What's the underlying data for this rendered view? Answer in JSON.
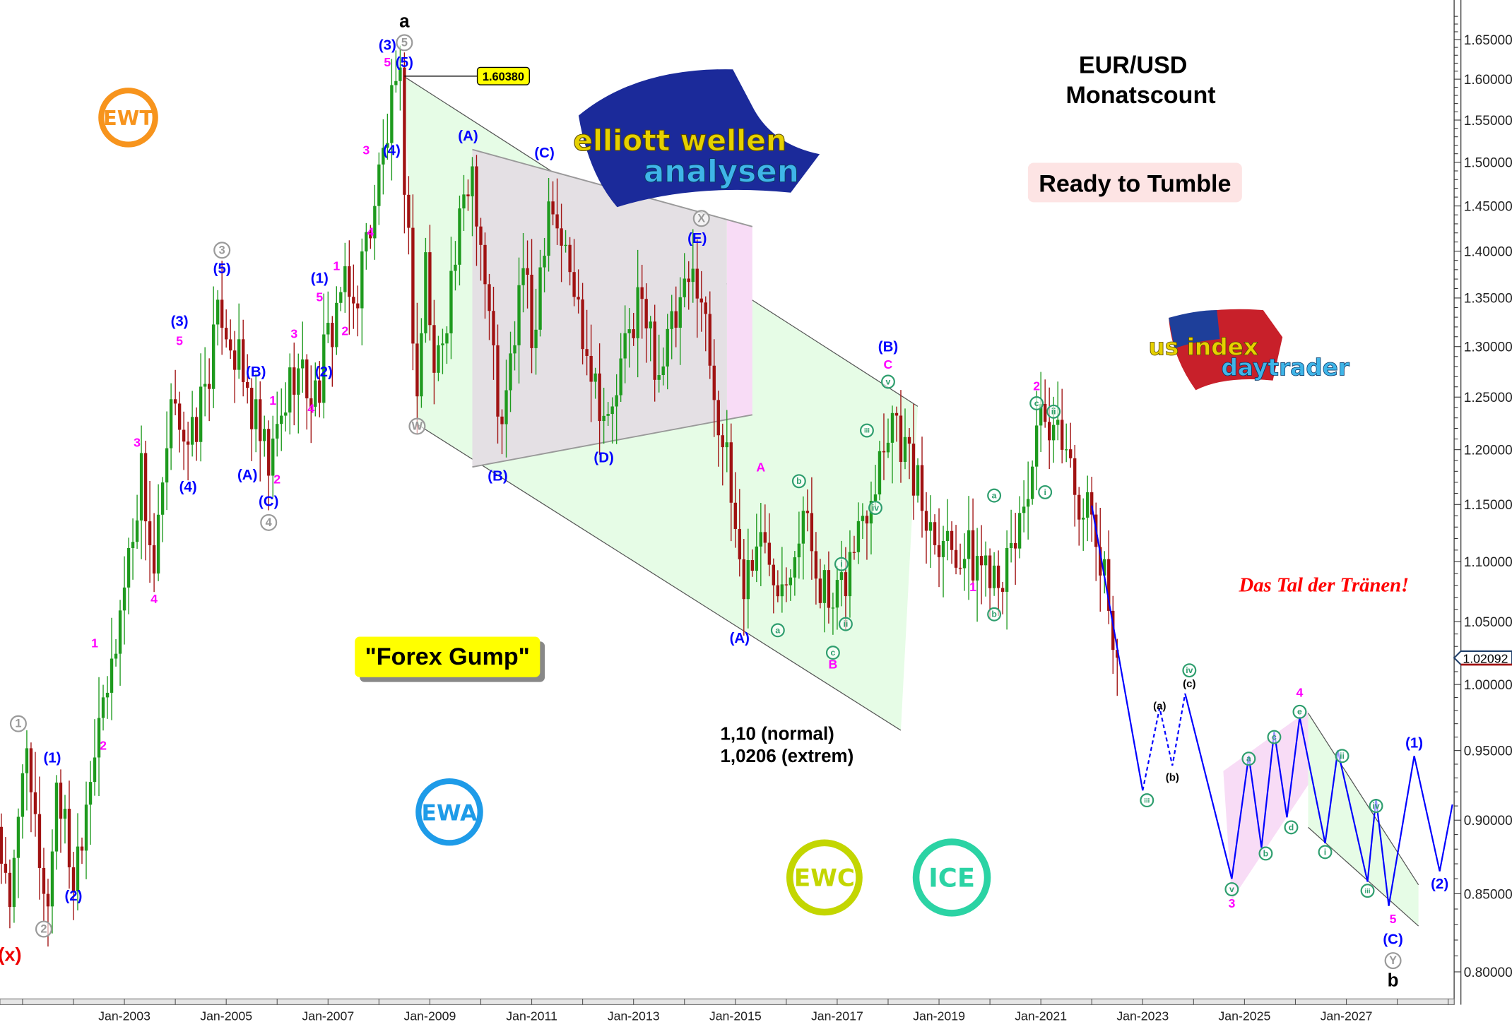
{
  "chart_data": {
    "type": "candlestick",
    "title": "EUR/USD",
    "subtitle": "Monatscount",
    "y_axis": {
      "scale": "log",
      "range": [
        0.79,
        1.68
      ],
      "ticks": [
        "1.65000",
        "1.60000",
        "1.55000",
        "1.50000",
        "1.45000",
        "1.40000",
        "1.35000",
        "1.30000",
        "1.25000",
        "1.20000",
        "1.15000",
        "1.10000",
        "1.05000",
        "1.00000",
        "0.95000",
        "0.90000",
        "0.85000",
        "0.80000"
      ],
      "position": "right"
    },
    "x_axis": {
      "range": [
        "2000-07",
        "2029-04"
      ],
      "ticks": [
        "Jan-2003",
        "Jan-2005",
        "Jan-2007",
        "Jan-2009",
        "Jan-2011",
        "Jan-2013",
        "Jan-2015",
        "Jan-2017",
        "Jan-2019",
        "Jan-2021",
        "Jan-2023",
        "Jan-2025",
        "Jan-2027"
      ]
    },
    "grid": false,
    "candle_colors": {
      "up": "#1e9a1e",
      "down": "#a01212"
    },
    "last_price": "1.02092",
    "peak_price_label": "1.60380",
    "peak_point": [
      "2008-07",
      1.6038
    ],
    "price_pivots": [
      [
        "2000-07",
        0.9
      ],
      [
        "2000-10",
        0.83
      ],
      [
        "2001-01",
        0.95
      ],
      [
        "2001-07",
        0.84
      ],
      [
        "2001-09",
        0.93
      ],
      [
        "2002-01",
        0.86
      ],
      [
        "2002-07",
        0.98
      ],
      [
        "2002-08",
        0.97
      ],
      [
        "2003-05",
        1.18
      ],
      [
        "2003-08",
        1.09
      ],
      [
        "2004-01",
        1.26
      ],
      [
        "2004-04",
        1.19
      ],
      [
        "2004-12",
        1.34
      ],
      [
        "2005-11",
        1.18
      ],
      [
        "2006-05",
        1.28
      ],
      [
        "2006-10",
        1.25
      ],
      [
        "2007-04",
        1.36
      ],
      [
        "2007-07",
        1.34
      ],
      [
        "2008-04",
        1.56
      ],
      [
        "2008-06",
        1.58
      ],
      [
        "2008-10",
        1.25
      ],
      [
        "2008-12",
        1.39
      ],
      [
        "2009-02",
        1.27
      ],
      [
        "2009-11",
        1.5
      ],
      [
        "2010-06",
        1.21
      ],
      [
        "2010-11",
        1.39
      ],
      [
        "2011-01",
        1.3
      ],
      [
        "2011-05",
        1.47
      ],
      [
        "2012-07",
        1.22
      ],
      [
        "2013-02",
        1.35
      ],
      [
        "2013-07",
        1.28
      ],
      [
        "2014-04",
        1.38
      ],
      [
        "2015-03",
        1.08
      ],
      [
        "2015-06",
        1.12
      ],
      [
        "2015-12",
        1.09
      ],
      [
        "2016-05",
        1.14
      ],
      [
        "2016-12",
        1.05
      ],
      [
        "2018-02",
        1.24
      ],
      [
        "2018-10",
        1.14
      ],
      [
        "2019-09",
        1.1
      ],
      [
        "2020-03",
        1.1
      ],
      [
        "2020-05",
        1.09
      ],
      [
        "2021-01",
        1.22
      ],
      [
        "2021-04",
        1.2
      ],
      [
        "2021-06",
        1.22
      ],
      [
        "2021-08",
        1.18
      ],
      [
        "2022-01",
        1.13
      ],
      [
        "2022-03",
        1.1
      ],
      [
        "2022-05",
        1.06
      ],
      [
        "2022-06",
        1.05
      ],
      [
        "2022-07",
        1.021
      ]
    ],
    "projection": {
      "color": "#0000ff",
      "solid_1": [
        [
          "2022-01",
          1.149
        ],
        [
          "2023-01",
          0.921
        ]
      ],
      "dotted": [
        [
          "2023-01",
          0.921
        ],
        [
          "2023-05",
          0.982
        ],
        [
          "2023-08",
          0.939
        ],
        [
          "2023-11",
          0.993
        ]
      ],
      "solid_2": [
        [
          "2023-11",
          0.993
        ],
        [
          "2024-10",
          0.86
        ],
        [
          "2025-02",
          0.946
        ],
        [
          "2025-05",
          0.881
        ],
        [
          "2025-08",
          0.964
        ],
        [
          "2025-11",
          0.902
        ],
        [
          "2026-02",
          0.975
        ],
        [
          "2026-08",
          0.884
        ],
        [
          "2026-11",
          0.95
        ],
        [
          "2027-06",
          0.858
        ],
        [
          "2027-08",
          0.915
        ],
        [
          "2027-11",
          0.842
        ],
        [
          "2028-05",
          0.946
        ],
        [
          "2028-11",
          0.865
        ],
        [
          "2029-02",
          0.911
        ]
      ]
    },
    "zones": [
      {
        "fill": "#e6fce6",
        "edges": true,
        "points": [
          [
            "2008-07",
            1.603
          ],
          [
            "2018-08",
            1.241
          ],
          [
            "2018-04",
            0.965
          ],
          [
            "2008-10",
            1.224
          ]
        ]
      },
      {
        "fill": "#f8dcf6",
        "edges": false,
        "points": [
          [
            "2011-04",
            1.493
          ],
          [
            "2015-05",
            1.427
          ],
          [
            "2015-05",
            1.233
          ],
          [
            "2014-11",
            1.228
          ],
          [
            "2014-11",
            1.434
          ]
        ]
      },
      {
        "fill": "#e4e0e4",
        "edges": false,
        "points": [
          [
            "2009-11",
            1.515
          ],
          [
            "2014-11",
            1.434
          ],
          [
            "2014-11",
            1.228
          ],
          [
            "2009-11",
            1.184
          ]
        ]
      },
      {
        "fill": "#f8dcf6",
        "edges": false,
        "points": [
          [
            "2024-08",
            0.935
          ],
          [
            "2026-04",
            0.98
          ],
          [
            "2026-04",
            0.925
          ],
          [
            "2024-10",
            0.846
          ]
        ]
      },
      {
        "fill": "#e6fce6",
        "edges": true,
        "points": [
          [
            "2026-04",
            0.978
          ],
          [
            "2028-06",
            0.856
          ],
          [
            "2028-06",
            0.829
          ],
          [
            "2026-04",
            0.895
          ]
        ]
      }
    ],
    "trend_lines": [
      {
        "color": "#999999",
        "points": [
          [
            "2009-11",
            1.515
          ],
          [
            "2015-05",
            1.427
          ]
        ]
      },
      {
        "color": "#999999",
        "points": [
          [
            "2009-11",
            1.184
          ],
          [
            "2015-05",
            1.233
          ]
        ]
      }
    ],
    "wave_labels": [
      {
        "t": "2000-10",
        "p": 0.81,
        "text": "(x)",
        "style": "red"
      },
      {
        "t": "2000-12",
        "p": 0.97,
        "text": "1",
        "style": "grey-circle"
      },
      {
        "t": "2001-06",
        "p": 0.827,
        "text": "2",
        "style": "grey-circle"
      },
      {
        "t": "2001-08",
        "p": 0.944,
        "text": "(1)",
        "style": "blue"
      },
      {
        "t": "2002-01",
        "p": 0.848,
        "text": "(2)",
        "style": "blue"
      },
      {
        "t": "2002-06",
        "p": 1.032,
        "text": "1",
        "style": "magenta"
      },
      {
        "t": "2002-08",
        "p": 0.953,
        "text": "2",
        "style": "magenta"
      },
      {
        "t": "2003-04",
        "p": 1.206,
        "text": "3",
        "style": "magenta"
      },
      {
        "t": "2003-08",
        "p": 1.068,
        "text": "4",
        "style": "magenta"
      },
      {
        "t": "2004-02",
        "p": 1.325,
        "text": "(3)",
        "style": "blue"
      },
      {
        "t": "2004-02",
        "p": 1.305,
        "text": "5",
        "style": "magenta"
      },
      {
        "t": "2004-04",
        "p": 1.165,
        "text": "(4)",
        "style": "blue"
      },
      {
        "t": "2004-12",
        "p": 1.401,
        "text": "3",
        "style": "grey-circle"
      },
      {
        "t": "2004-12",
        "p": 1.38,
        "text": "(5)",
        "style": "blue"
      },
      {
        "t": "2005-08",
        "p": 1.274,
        "text": "(B)",
        "style": "blue"
      },
      {
        "t": "2005-12",
        "p": 1.246,
        "text": "1",
        "style": "magenta"
      },
      {
        "t": "2005-06",
        "p": 1.176,
        "text": "(A)",
        "style": "blue"
      },
      {
        "t": "2006-01",
        "p": 1.172,
        "text": "2",
        "style": "magenta"
      },
      {
        "t": "2005-11",
        "p": 1.152,
        "text": "(C)",
        "style": "blue"
      },
      {
        "t": "2005-11",
        "p": 1.134,
        "text": "4",
        "style": "grey-circle"
      },
      {
        "t": "2006-05",
        "p": 1.312,
        "text": "3",
        "style": "magenta"
      },
      {
        "t": "2006-09",
        "p": 1.238,
        "text": "4",
        "style": "magenta"
      },
      {
        "t": "2006-12",
        "p": 1.274,
        "text": "(2)",
        "style": "blue"
      },
      {
        "t": "2006-11",
        "p": 1.37,
        "text": "(1)",
        "style": "blue"
      },
      {
        "t": "2006-11",
        "p": 1.35,
        "text": "5",
        "style": "magenta"
      },
      {
        "t": "2007-03",
        "p": 1.383,
        "text": "1",
        "style": "magenta"
      },
      {
        "t": "2007-05",
        "p": 1.315,
        "text": "2",
        "style": "magenta"
      },
      {
        "t": "2007-10",
        "p": 1.513,
        "text": "3",
        "style": "magenta"
      },
      {
        "t": "2007-11",
        "p": 1.42,
        "text": "4",
        "style": "magenta"
      },
      {
        "t": "2008-04",
        "p": 1.513,
        "text": "(4)",
        "style": "blue"
      },
      {
        "t": "2008-03",
        "p": 1.642,
        "text": "(3)",
        "style": "blue"
      },
      {
        "t": "2008-07",
        "p": 1.646,
        "text": "5",
        "style": "grey-circle"
      },
      {
        "t": "2008-03",
        "p": 1.62,
        "text": "5",
        "style": "magenta"
      },
      {
        "t": "2008-07",
        "p": 1.62,
        "text": "(5)",
        "style": "blue"
      },
      {
        "t": "2008-07",
        "p": 1.672,
        "text": "a",
        "style": "black"
      },
      {
        "t": "2008-10",
        "p": 1.222,
        "text": "W",
        "style": "grey-circle"
      },
      {
        "t": "2009-10",
        "p": 1.53,
        "text": "(A)",
        "style": "blue"
      },
      {
        "t": "2011-04",
        "p": 1.51,
        "text": "(C)",
        "style": "blue"
      },
      {
        "t": "2014-05",
        "p": 1.436,
        "text": "X",
        "style": "grey-circle"
      },
      {
        "t": "2014-04",
        "p": 1.413,
        "text": "(E)",
        "style": "blue"
      },
      {
        "t": "2010-05",
        "p": 1.175,
        "text": "(B)",
        "style": "blue"
      },
      {
        "t": "2012-06",
        "p": 1.192,
        "text": "(D)",
        "style": "blue"
      },
      {
        "t": "2015-02",
        "p": 1.036,
        "text": "(A)",
        "style": "blue"
      },
      {
        "t": "2015-07",
        "p": 1.183,
        "text": "A",
        "style": "magenta"
      },
      {
        "t": "2016-04",
        "p": 1.171,
        "text": "b",
        "style": "green-circle"
      },
      {
        "t": "2015-11",
        "p": 1.043,
        "text": "a",
        "style": "green-circle"
      },
      {
        "t": "2016-12",
        "p": 1.025,
        "text": "c",
        "style": "green-circle"
      },
      {
        "t": "2016-12",
        "p": 1.015,
        "text": "B",
        "style": "magenta"
      },
      {
        "t": "2017-02",
        "p": 1.098,
        "text": "i",
        "style": "green-circle"
      },
      {
        "t": "2017-03",
        "p": 1.048,
        "text": "ii",
        "style": "green-circle"
      },
      {
        "t": "2017-08",
        "p": 1.218,
        "text": "iii",
        "style": "green-circle"
      },
      {
        "t": "2017-10",
        "p": 1.147,
        "text": "iv",
        "style": "green-circle"
      },
      {
        "t": "2018-01",
        "p": 1.265,
        "text": "v",
        "style": "green-circle"
      },
      {
        "t": "2018-01",
        "p": 1.281,
        "text": "C",
        "style": "magenta"
      },
      {
        "t": "2018-01",
        "p": 1.299,
        "text": "(B)",
        "style": "blue"
      },
      {
        "t": "2019-09",
        "p": 1.078,
        "text": "1",
        "style": "magenta"
      },
      {
        "t": "2020-02",
        "p": 1.158,
        "text": "a",
        "style": "green-circle"
      },
      {
        "t": "2020-02",
        "p": 1.056,
        "text": "b",
        "style": "green-circle"
      },
      {
        "t": "2020-12",
        "p": 1.26,
        "text": "2",
        "style": "magenta"
      },
      {
        "t": "2020-12",
        "p": 1.244,
        "text": "c",
        "style": "green-circle"
      },
      {
        "t": "2021-04",
        "p": 1.236,
        "text": "ii",
        "style": "green-circle"
      },
      {
        "t": "2021-02",
        "p": 1.161,
        "text": "i",
        "style": "green-circle"
      },
      {
        "t": "2023-02",
        "p": 0.914,
        "text": "iii",
        "style": "green-circle"
      },
      {
        "t": "2023-05",
        "p": 0.983,
        "text": "(a)",
        "style": "black-small"
      },
      {
        "t": "2023-08",
        "p": 0.93,
        "text": "(b)",
        "style": "black-small"
      },
      {
        "t": "2023-12",
        "p": 1.0,
        "text": "(c)",
        "style": "black-small"
      },
      {
        "t": "2023-12",
        "p": 1.011,
        "text": "iv",
        "style": "green-circle"
      },
      {
        "t": "2024-10",
        "p": 0.853,
        "text": "v",
        "style": "green-circle"
      },
      {
        "t": "2024-10",
        "p": 0.843,
        "text": "3",
        "style": "magenta"
      },
      {
        "t": "2025-02",
        "p": 0.944,
        "text": "a",
        "style": "green-circle"
      },
      {
        "t": "2025-06",
        "p": 0.877,
        "text": "b",
        "style": "green-circle"
      },
      {
        "t": "2025-08",
        "p": 0.96,
        "text": "c",
        "style": "green-circle"
      },
      {
        "t": "2025-12",
        "p": 0.895,
        "text": "d",
        "style": "green-circle"
      },
      {
        "t": "2026-02",
        "p": 0.979,
        "text": "e",
        "style": "green-circle"
      },
      {
        "t": "2026-02",
        "p": 0.993,
        "text": "4",
        "style": "magenta"
      },
      {
        "t": "2026-08",
        "p": 0.878,
        "text": "i",
        "style": "green-circle"
      },
      {
        "t": "2026-12",
        "p": 0.946,
        "text": "ii",
        "style": "green-circle"
      },
      {
        "t": "2027-06",
        "p": 0.852,
        "text": "iii",
        "style": "green-circle"
      },
      {
        "t": "2027-08",
        "p": 0.91,
        "text": "iv",
        "style": "green-circle"
      },
      {
        "t": "2027-12",
        "p": 0.833,
        "text": "5",
        "style": "magenta"
      },
      {
        "t": "2027-12",
        "p": 0.82,
        "text": "(C)",
        "style": "blue"
      },
      {
        "t": "2027-12",
        "p": 0.807,
        "text": "Y",
        "style": "grey-circle"
      },
      {
        "t": "2027-12",
        "p": 0.794,
        "text": "b",
        "style": "black"
      },
      {
        "t": "2028-05",
        "p": 0.955,
        "text": "(1)",
        "style": "blue"
      },
      {
        "t": "2028-11",
        "p": 0.856,
        "text": "(2)",
        "style": "blue"
      }
    ]
  },
  "annotations": {
    "title": "EUR/USD",
    "subtitle": "Monatscount",
    "ready_badge": "Ready to Tumble",
    "tal_text": "Das Tal der Tränen!",
    "forex_gump": "\"Forex Gump\"",
    "target_normal": "1,10 (normal)",
    "target_extreme": "1,0206 (extrem)"
  },
  "logos": {
    "ewt": {
      "text": "EWT",
      "color": "#f7941d"
    },
    "ewa": {
      "text": "EWA",
      "color": "#1e9be8"
    },
    "ewc": {
      "text": "EWC",
      "color": "#c3d600"
    },
    "ice": {
      "text": "ICE",
      "color": "#2bd3a4"
    },
    "elliott_wellen_analysen": {
      "line1": "elliott wellen",
      "line2": "analysen"
    },
    "us_index_daytrader": {
      "line1": "us index",
      "line2": "daytrader"
    }
  },
  "colors": {
    "blue_label": "#0000ff",
    "magenta_label": "#ff00ff",
    "green_circle": "#2e9e6e",
    "grey_circle": "#9a9a9a"
  }
}
